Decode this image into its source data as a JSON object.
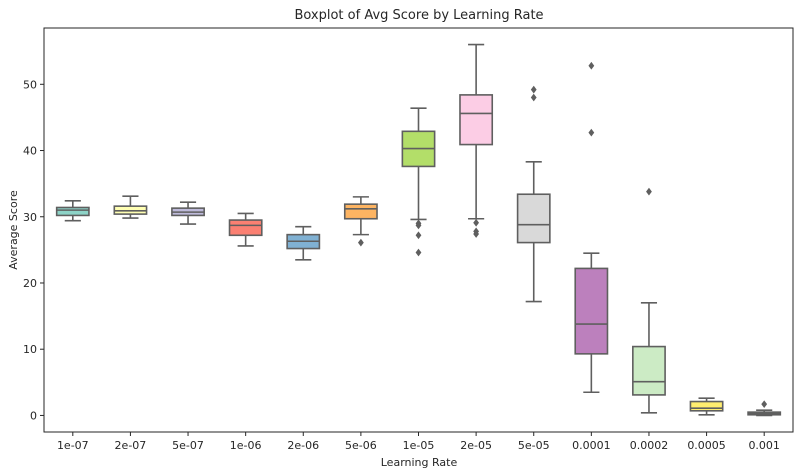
{
  "chart_data": {
    "type": "boxplot",
    "title": "Boxplot of Avg Score by Learning Rate",
    "xlabel": "Learning Rate",
    "ylabel": "Average Score",
    "ylim": [
      -2.5,
      58.5
    ],
    "yticks": [
      0,
      10,
      20,
      30,
      40,
      50
    ],
    "ytick_labels": [
      "0",
      "10",
      "20",
      "30",
      "40",
      "50"
    ],
    "grid": false,
    "categories": [
      "1e-07",
      "2e-07",
      "5e-07",
      "1e-06",
      "2e-06",
      "5e-06",
      "1e-05",
      "2e-05",
      "5e-05",
      "0.0001",
      "0.0002",
      "0.0005",
      "0.001"
    ],
    "box_colors": [
      "#8dd3c7",
      "#ffffb3",
      "#bebada",
      "#fb8072",
      "#80b1d3",
      "#fdb462",
      "#b3de69",
      "#fccde5",
      "#d9d9d9",
      "#bc80bd",
      "#ccebc5",
      "#ffed6f",
      "#8dd3c7"
    ],
    "line_color": "#5f5f5f",
    "boxes": [
      {
        "label": "1e-07",
        "whislo": 29.4,
        "q1": 30.2,
        "med": 31.0,
        "q3": 31.4,
        "whishi": 32.4,
        "fliers": []
      },
      {
        "label": "2e-07",
        "whislo": 29.8,
        "q1": 30.4,
        "med": 30.9,
        "q3": 31.6,
        "whishi": 33.1,
        "fliers": []
      },
      {
        "label": "5e-07",
        "whislo": 28.9,
        "q1": 30.2,
        "med": 30.7,
        "q3": 31.3,
        "whishi": 32.2,
        "fliers": []
      },
      {
        "label": "1e-06",
        "whislo": 25.6,
        "q1": 27.2,
        "med": 28.7,
        "q3": 29.5,
        "whishi": 30.5,
        "fliers": []
      },
      {
        "label": "2e-06",
        "whislo": 23.5,
        "q1": 25.2,
        "med": 26.3,
        "q3": 27.3,
        "whishi": 28.5,
        "fliers": []
      },
      {
        "label": "5e-06",
        "whislo": 27.3,
        "q1": 29.7,
        "med": 31.2,
        "q3": 31.9,
        "whishi": 33.0,
        "fliers": [
          26.1
        ]
      },
      {
        "label": "1e-05",
        "whislo": 29.6,
        "q1": 37.6,
        "med": 40.3,
        "q3": 42.9,
        "whishi": 46.4,
        "fliers": [
          29.0,
          28.7,
          27.2,
          24.6
        ]
      },
      {
        "label": "2e-05",
        "whislo": 29.7,
        "q1": 40.9,
        "med": 45.6,
        "q3": 48.4,
        "whishi": 56.0,
        "fliers": [
          29.1,
          27.8,
          27.4
        ]
      },
      {
        "label": "5e-05",
        "whislo": 17.2,
        "q1": 26.1,
        "med": 28.8,
        "q3": 33.4,
        "whishi": 38.3,
        "fliers": [
          49.2,
          48.0
        ]
      },
      {
        "label": "0.0001",
        "whislo": 3.5,
        "q1": 9.3,
        "med": 13.8,
        "q3": 22.2,
        "whishi": 24.5,
        "fliers": [
          52.8,
          42.7
        ]
      },
      {
        "label": "0.0002",
        "whislo": 0.4,
        "q1": 3.1,
        "med": 5.1,
        "q3": 10.4,
        "whishi": 17.0,
        "fliers": [
          33.8
        ]
      },
      {
        "label": "0.0005",
        "whislo": 0.1,
        "q1": 0.7,
        "med": 1.1,
        "q3": 2.1,
        "whishi": 2.6,
        "fliers": []
      },
      {
        "label": "0.001",
        "whislo": 0.0,
        "q1": 0.1,
        "med": 0.3,
        "q3": 0.5,
        "whishi": 0.8,
        "fliers": [
          1.7
        ]
      }
    ]
  }
}
